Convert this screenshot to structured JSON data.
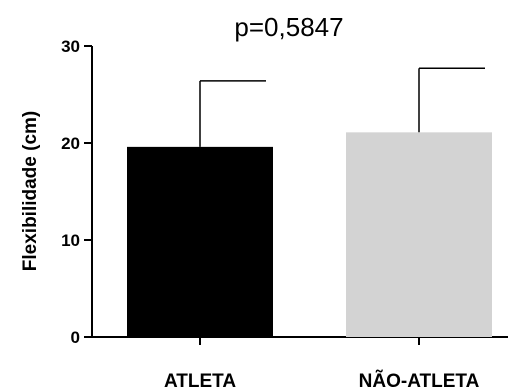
{
  "chart_data": {
    "type": "bar",
    "title": "p=0,5847",
    "xlabel": "",
    "ylabel": "Flexibilidade (cm)",
    "categories": [
      "ATLETA",
      "NÃO-ATLETA"
    ],
    "values": [
      19.6,
      21.1
    ],
    "error_upper": [
      6.8,
      6.6
    ],
    "ylim": [
      0,
      30
    ],
    "yticks": [
      0,
      10,
      20,
      30
    ],
    "grid": false,
    "colors": [
      "#000000",
      "#d3d3d3"
    ]
  }
}
